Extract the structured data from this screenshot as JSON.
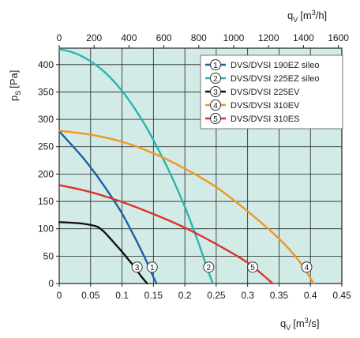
{
  "chart_data": {
    "type": "line",
    "x_axis": {
      "label_main": "q",
      "label_sub": "V",
      "label_unit_pre": "[m",
      "label_unit_sup": "3",
      "label_unit_post": "/s]",
      "min": 0,
      "max": 0.45,
      "ticks": [
        0,
        0.05,
        0.1,
        0.15,
        0.2,
        0.25,
        0.3,
        0.35,
        0.4,
        0.45
      ],
      "tick_labels": [
        "0",
        "0.05",
        "0.1",
        "0.15",
        "0.2",
        "0.25",
        "0.3",
        "0.35",
        "0.4",
        "0.45"
      ]
    },
    "x2_axis": {
      "label_main": "q",
      "label_sub": "V",
      "label_unit_pre": "[m",
      "label_unit_sup": "3",
      "label_unit_post": "/h]",
      "min": 0,
      "max": 1620,
      "ticks": [
        0,
        200,
        400,
        600,
        800,
        1000,
        1200,
        1400,
        1600
      ],
      "tick_labels": [
        "0",
        "200",
        "400",
        "600",
        "800",
        "1000",
        "1200",
        "1400",
        "1600"
      ]
    },
    "y_axis": {
      "label_main": "p",
      "label_sub": "S",
      "label_unit": "[Pa]",
      "min": 0,
      "max": 430,
      "ticks": [
        0,
        50,
        100,
        150,
        200,
        250,
        300,
        350,
        400
      ],
      "tick_labels": [
        "0",
        "50",
        "100",
        "150",
        "200",
        "250",
        "300",
        "350",
        "400"
      ]
    },
    "grid": true,
    "legend_position": "top-right",
    "series": [
      {
        "name": "DVS/DVSI 190EZ sileo",
        "marker": "1",
        "color": "#1f5fa8",
        "label_at": [
          0.148,
          30
        ],
        "x": [
          0,
          0.02,
          0.04,
          0.06,
          0.08,
          0.1,
          0.12,
          0.13,
          0.14,
          0.15,
          0.155
        ],
        "y": [
          278,
          253,
          227,
          197,
          164,
          128,
          85,
          62,
          38,
          12,
          0
        ]
      },
      {
        "name": "DVS/DVSI 225EZ sileo",
        "marker": "2",
        "color": "#2ab5ad",
        "label_at": [
          0.238,
          30
        ],
        "x": [
          0,
          0.02,
          0.04,
          0.06,
          0.08,
          0.1,
          0.12,
          0.14,
          0.16,
          0.18,
          0.2,
          0.22,
          0.24,
          0.245
        ],
        "y": [
          428,
          423,
          413,
          398,
          378,
          352,
          320,
          283,
          240,
          193,
          140,
          80,
          14,
          0
        ]
      },
      {
        "name": "DVS/DVSI 225EV",
        "marker": "3",
        "color": "#111111",
        "label_at": [
          0.124,
          30
        ],
        "x": [
          0,
          0.02,
          0.04,
          0.06,
          0.07,
          0.08,
          0.09,
          0.1,
          0.11,
          0.12,
          0.13,
          0.14
        ],
        "y": [
          112,
          111,
          109,
          104,
          96,
          84,
          71,
          58,
          44,
          30,
          14,
          0
        ]
      },
      {
        "name": "DVS/DVSI 310EV",
        "marker": "4",
        "color": "#f0961f",
        "label_at": [
          0.394,
          30
        ],
        "x": [
          0,
          0.05,
          0.1,
          0.15,
          0.2,
          0.25,
          0.3,
          0.35,
          0.38,
          0.4,
          0.405
        ],
        "y": [
          279,
          272,
          259,
          238,
          210,
          176,
          132,
          82,
          44,
          10,
          0
        ]
      },
      {
        "name": "DVS/DVSI 310ES",
        "marker": "5",
        "color": "#d9342b",
        "label_at": [
          0.308,
          30
        ],
        "x": [
          0,
          0.05,
          0.1,
          0.15,
          0.2,
          0.25,
          0.3,
          0.34
        ],
        "y": [
          180,
          167,
          149,
          127,
          102,
          72,
          38,
          0
        ]
      }
    ]
  }
}
